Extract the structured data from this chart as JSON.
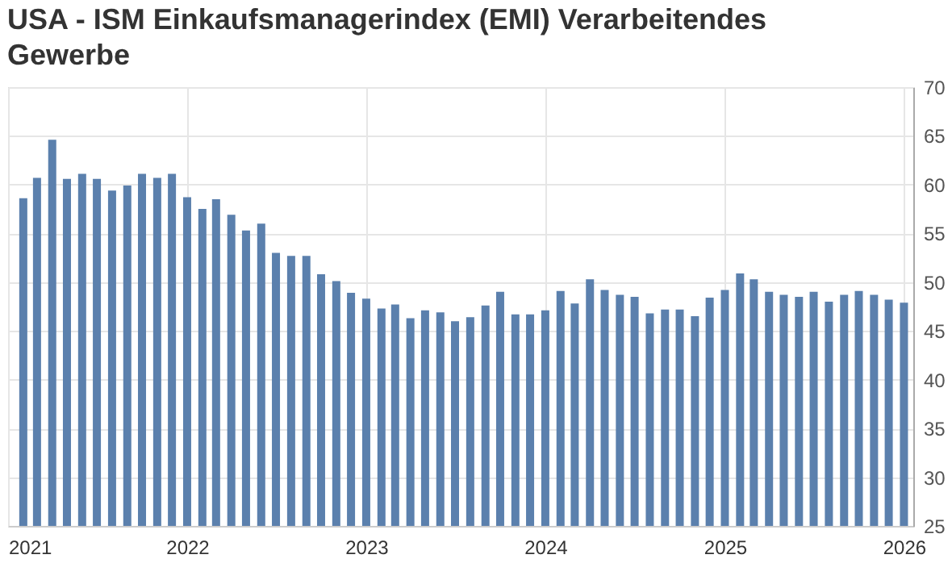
{
  "chart_data": {
    "type": "bar",
    "title": "USA - ISM Einkaufsmanagerindex (EMI) Verarbeitendes Gewerbe",
    "x": [
      "2021-02",
      "2021-03",
      "2021-04",
      "2021-05",
      "2021-06",
      "2021-07",
      "2021-08",
      "2021-09",
      "2021-10",
      "2021-11",
      "2021-12",
      "2022-01",
      "2022-02",
      "2022-03",
      "2022-04",
      "2022-05",
      "2022-06",
      "2022-07",
      "2022-08",
      "2022-09",
      "2022-10",
      "2022-11",
      "2022-12",
      "2023-01",
      "2023-02",
      "2023-03",
      "2023-04",
      "2023-05",
      "2023-06",
      "2023-07",
      "2023-08",
      "2023-09",
      "2023-10",
      "2023-11",
      "2023-12",
      "2024-01",
      "2024-02",
      "2024-03",
      "2024-04",
      "2024-05",
      "2024-06",
      "2024-07",
      "2024-08",
      "2024-09",
      "2024-10",
      "2024-11",
      "2024-12",
      "2025-01",
      "2025-02",
      "2025-03",
      "2025-04",
      "2025-05",
      "2025-06",
      "2025-07",
      "2025-08",
      "2025-09",
      "2025-10",
      "2025-11",
      "2025-12",
      "2026-01"
    ],
    "values": [
      58.6,
      60.7,
      64.6,
      60.6,
      61.1,
      60.6,
      59.4,
      59.9,
      61.1,
      60.7,
      61.1,
      58.7,
      57.5,
      58.5,
      56.9,
      55.3,
      56.0,
      53.0,
      52.7,
      52.7,
      50.8,
      50.1,
      48.9,
      48.3,
      47.3,
      47.7,
      46.3,
      47.1,
      46.9,
      46.0,
      46.4,
      47.6,
      49.0,
      46.7,
      46.7,
      47.1,
      49.1,
      47.8,
      50.3,
      49.2,
      48.7,
      48.5,
      46.8,
      47.2,
      47.2,
      46.5,
      48.4,
      49.2,
      50.9,
      50.3,
      49.0,
      48.7,
      48.5,
      49.0,
      48.0,
      48.7,
      49.1,
      48.7,
      48.2,
      47.9
    ],
    "color": "#5b80ad",
    "xlim": [
      "2021-01-01",
      "2026-01-20"
    ],
    "xticks": [
      "2021",
      "2022",
      "2023",
      "2024",
      "2025",
      "2026"
    ],
    "ylim": [
      25,
      70
    ],
    "yticks": [
      25,
      30,
      35,
      40,
      45,
      50,
      55,
      60,
      65,
      70
    ],
    "grid": true
  }
}
